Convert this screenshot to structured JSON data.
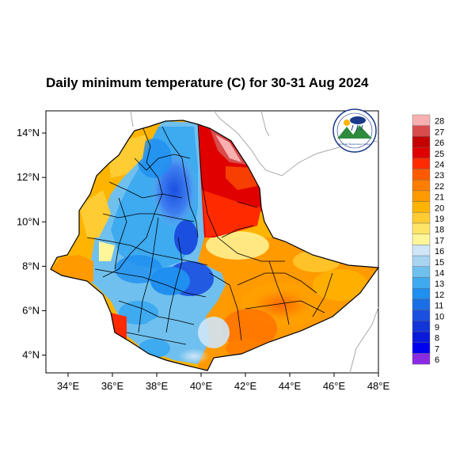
{
  "title": "Daily minimum temperature (C) for 30-31 Aug 2024",
  "map": {
    "lon_range": [
      33,
      48
    ],
    "lat_range": [
      3.2,
      15
    ],
    "lon_ticks": [
      "34°E",
      "36°E",
      "38°E",
      "40°E",
      "42°E",
      "44°E",
      "46°E",
      "48°E"
    ],
    "lat_ticks": [
      "4°N",
      "6°N",
      "8°N",
      "10°N",
      "12°N",
      "14°N"
    ],
    "background_color": "#ffffff",
    "neighbor_border_color": "#aaaaaa",
    "admin_border_color": "#000000"
  },
  "colorbar": {
    "levels": [
      "28",
      "27",
      "26",
      "25",
      "24",
      "23",
      "22",
      "21",
      "20",
      "19",
      "18",
      "17",
      "16",
      "15",
      "14",
      "13",
      "12",
      "11",
      "10",
      "9",
      "8",
      "7",
      "6"
    ],
    "colors": [
      "#f8b0b0",
      "#d94c4c",
      "#c40000",
      "#e00000",
      "#ff2a00",
      "#ff5a00",
      "#ff7e00",
      "#ff9a00",
      "#ffb400",
      "#ffcc33",
      "#ffe566",
      "#fff599",
      "#cfe6f7",
      "#a8d4f2",
      "#6fc0ee",
      "#3eaaf0",
      "#1f8ff0",
      "#1a6fe6",
      "#1a4fe0",
      "#1234d8",
      "#0a1adb",
      "#0000f0",
      "#8a2be2"
    ]
  },
  "logo": {
    "icon": "ethiopian-meteorology-institute-logo",
    "text": "Ethiopian Meteorology Institute"
  }
}
